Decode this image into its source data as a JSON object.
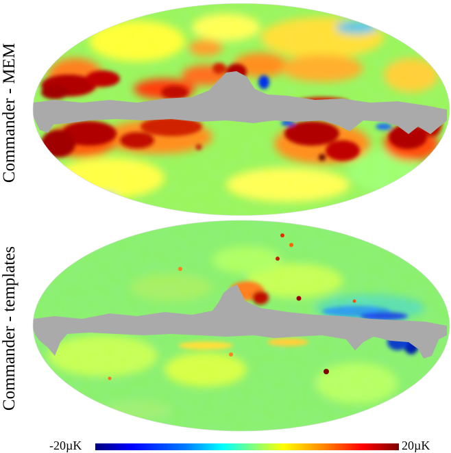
{
  "panels": [
    {
      "label": "Commander - MEM",
      "style": "strong"
    },
    {
      "label": "Commander - templates",
      "style": "weak"
    }
  ],
  "colorbar": {
    "min_label": "-20µK",
    "max_label": "20µK",
    "colormap": "jet"
  },
  "colors": {
    "mask": "#aaaaaa",
    "background": "#ffffff"
  }
}
